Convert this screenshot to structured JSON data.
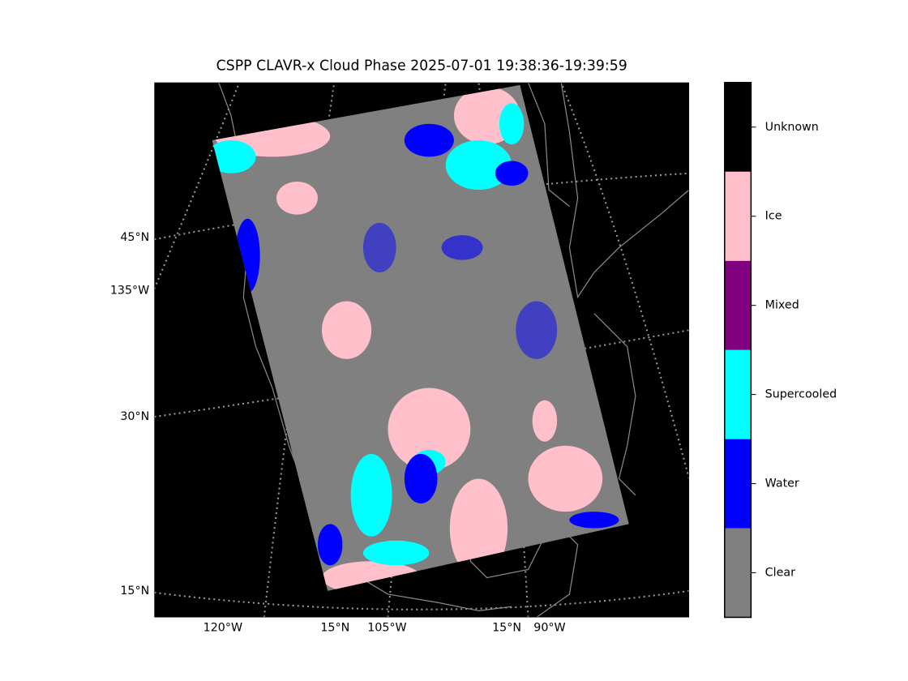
{
  "title": "CSPP CLAVR-x Cloud Phase 2025-07-01 19:38:36-19:39:59",
  "map": {
    "left_labels": [
      "45°N",
      "135°W",
      "30°N",
      "15°N"
    ],
    "bottom_labels": [
      "120°W",
      "15°N",
      "105°W",
      "15°N",
      "90°W"
    ]
  },
  "colorbar": {
    "categories": [
      {
        "label": "Clear",
        "color": "#808080"
      },
      {
        "label": "Water",
        "color": "#0000ff"
      },
      {
        "label": "Supercooled",
        "color": "#00ffff"
      },
      {
        "label": "Mixed",
        "color": "#800080"
      },
      {
        "label": "Ice",
        "color": "#ffc0cb"
      },
      {
        "label": "Unknown",
        "color": "#000000"
      }
    ]
  }
}
